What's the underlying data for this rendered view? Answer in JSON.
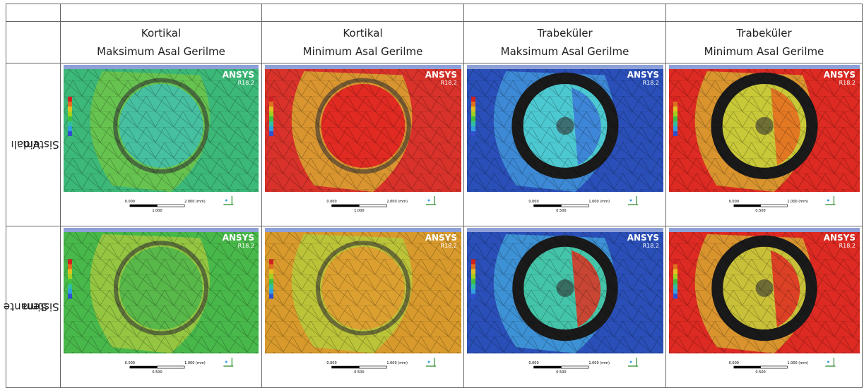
{
  "header": {
    "columns": [
      {
        "line1": "Kortikal",
        "line2": "Maksimum Asal Gerilme"
      },
      {
        "line1": "Kortikal",
        "line2": "Minimum Asal Gerilme"
      },
      {
        "line1": "Trabeküler",
        "line2": "Maksimum Asal Gerilme"
      },
      {
        "line1": "Trabeküler",
        "line2": "Minimum Asal Gerilme"
      }
    ]
  },
  "rows": [
    {
      "label": [
        "Vidalı",
        "Sistem"
      ],
      "cells": [
        {
          "brand": "ANSYS",
          "version": "R18.2",
          "scale": [
            "0.000",
            "2.000 (mm)",
            "1.000"
          ]
        },
        {
          "brand": "ANSYS",
          "version": "R18.2",
          "scale": [
            "0.000",
            "2.000 (mm)",
            "1.000"
          ]
        },
        {
          "brand": "ANSYS",
          "version": "R18.2",
          "scale": [
            "0.000",
            "1.000 (mm)",
            "0.500"
          ]
        },
        {
          "brand": "ANSYS",
          "version": "R18.2",
          "scale": [
            "0.000",
            "1.000 (mm)",
            "0.500"
          ]
        }
      ]
    },
    {
      "label": [
        "Simante",
        "Sistem"
      ],
      "cells": [
        {
          "brand": "ANSYS",
          "version": "R18.2",
          "scale": [
            "0.000",
            "1.000 (mm)",
            "0.500"
          ]
        },
        {
          "brand": "ANSYS",
          "version": "R18.2",
          "scale": [
            "0.000",
            "1.000 (mm)",
            "0.500"
          ]
        },
        {
          "brand": "ANSYS",
          "version": "R18.2",
          "scale": [
            "0.000",
            "1.000 (mm)",
            "0.500"
          ]
        },
        {
          "brand": "ANSYS",
          "version": "R18.2",
          "scale": [
            "0.000",
            "1.000 (mm)",
            "0.500"
          ]
        }
      ]
    }
  ]
}
